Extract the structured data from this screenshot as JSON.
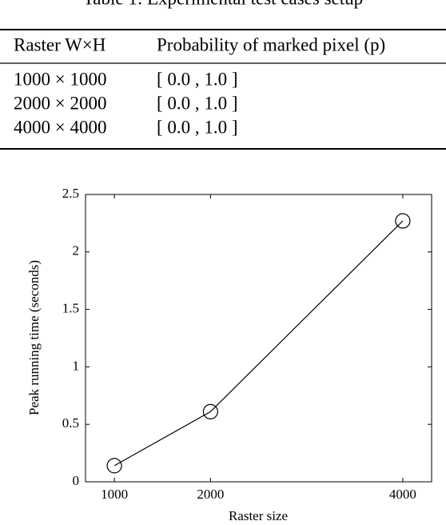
{
  "table": {
    "caption": "Table 1: Experimental test cases setup",
    "header": [
      "Raster W×H",
      "Probability of marked pixel (p)"
    ],
    "rows": [
      [
        "1000 × 1000",
        "[ 0.0 , 1.0 ]"
      ],
      [
        "2000 × 2000",
        "[ 0.0 , 1.0 ]"
      ],
      [
        "4000 × 4000",
        "[ 0.0 , 1.0 ]"
      ]
    ]
  },
  "chart_data": {
    "type": "line",
    "x_label": "Raster size",
    "y_label": "Peak running time (seconds)",
    "x": [
      1000,
      2000,
      4000
    ],
    "values": [
      0.14,
      0.61,
      2.27
    ],
    "color": "#000000",
    "xlim": [
      700,
      4300
    ],
    "xticks": [
      1000,
      2000,
      4000
    ],
    "ylim": [
      0,
      2.5
    ],
    "yticks": [
      0,
      0.5,
      1,
      1.5,
      2,
      2.5
    ]
  }
}
